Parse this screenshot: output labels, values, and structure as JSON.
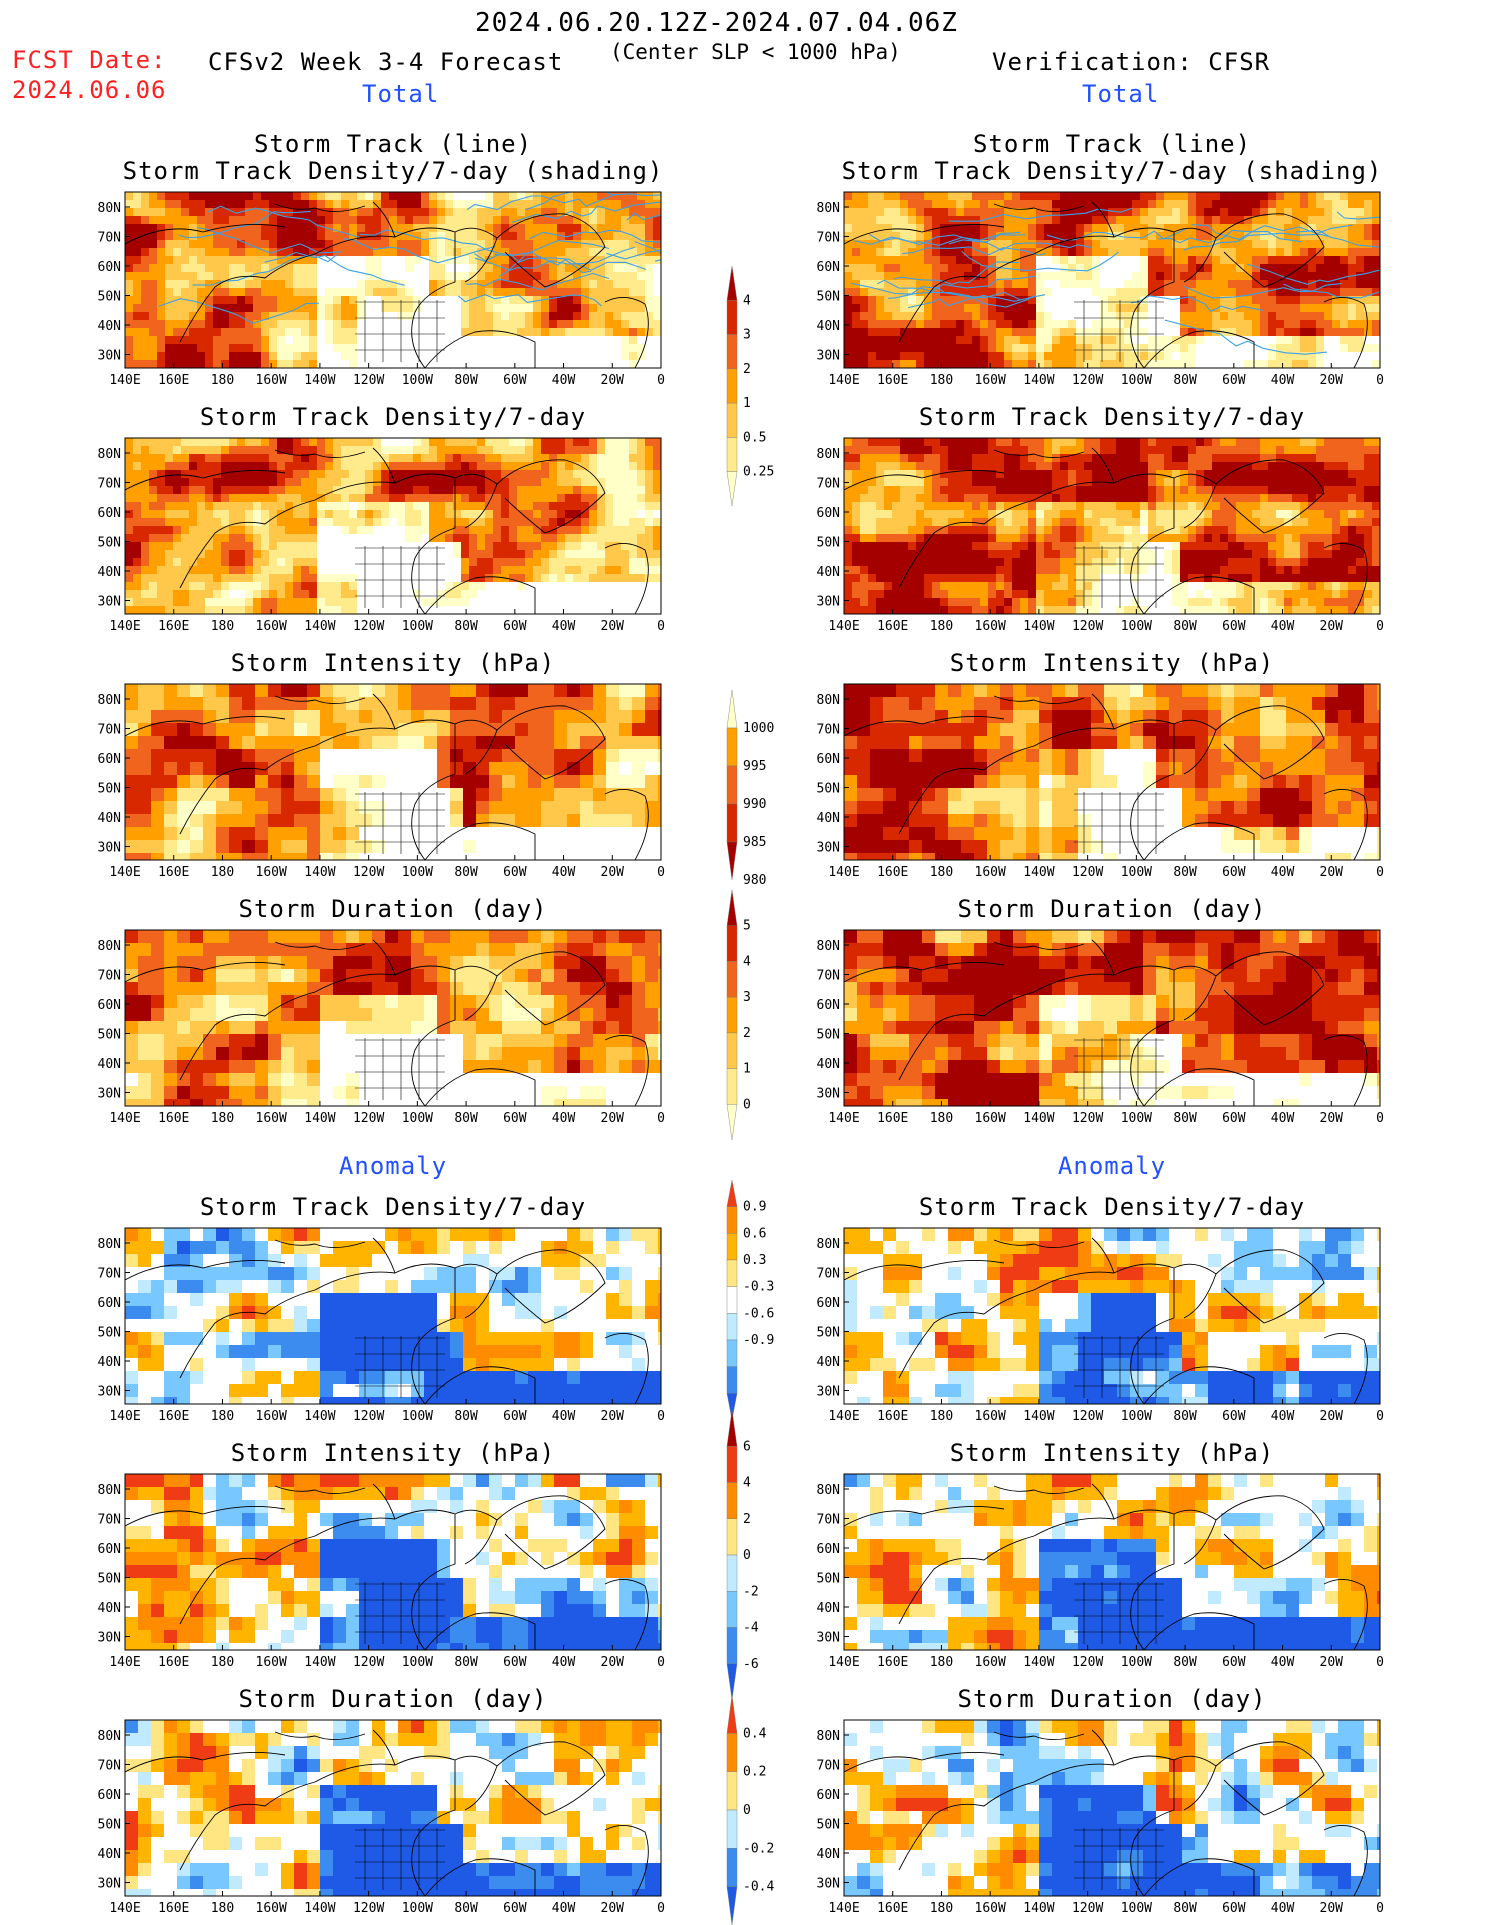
{
  "header": {
    "date_range": "2024.06.20.12Z-2024.07.04.06Z",
    "fcst_label": "FCST Date:",
    "fcst_date": "2024.06.06",
    "forecast_title": "CFSv2 Week 3-4 Forecast",
    "criterion": "(Center SLP < 1000 hPa)",
    "verification": "Verification: CFSR"
  },
  "sections": {
    "total": "Total",
    "anomaly": "Anomaly"
  },
  "panel_titles": {
    "track_line": "Storm Track (line)",
    "track_shading": "Storm Track Density/7-day (shading)",
    "density": "Storm Track Density/7-day",
    "intensity": "Storm Intensity (hPa)",
    "duration": "Storm Duration (day)"
  },
  "axes": {
    "lon_labels": [
      "140E",
      "160E",
      "180",
      "160W",
      "140W",
      "120W",
      "100W",
      "80W",
      "60W",
      "40W",
      "20W",
      "0"
    ],
    "lat_labels": [
      "80N",
      "70N",
      "60N",
      "50N",
      "40N",
      "30N"
    ]
  },
  "colorbars": [
    {
      "name": "density",
      "labels": [
        "4",
        "3",
        "2",
        "1",
        "0.5",
        "0.25"
      ],
      "colors": [
        "#a50000",
        "#d72800",
        "#f0641e",
        "#ffa000",
        "#ffc84b",
        "#ffeb8c",
        "#ffffc8"
      ]
    },
    {
      "name": "intensity",
      "labels": [
        "1000",
        "995",
        "990",
        "985",
        "980"
      ],
      "colors": [
        "#ffffc8",
        "#ffa000",
        "#f0641e",
        "#d72800",
        "#a50000"
      ]
    },
    {
      "name": "duration",
      "labels": [
        "5",
        "4",
        "3",
        "2",
        "1",
        "0"
      ],
      "colors": [
        "#a50000",
        "#d72800",
        "#f0641e",
        "#ffa000",
        "#ffc84b",
        "#ffeb8c",
        "#ffffc8"
      ]
    },
    {
      "name": "density-anomaly",
      "labels": [
        "0.9",
        "0.6",
        "0.3",
        "-0.3",
        "-0.6",
        "-0.9"
      ],
      "colors": [
        "#f03c14",
        "#ff8c00",
        "#ffb400",
        "#ffe682",
        "#ffffff",
        "#bfeaff",
        "#78c8ff",
        "#3c8cf0",
        "#1e5ae6"
      ]
    },
    {
      "name": "intensity-anomaly",
      "labels": [
        "6",
        "4",
        "2",
        "0",
        "-2",
        "-4",
        "-6"
      ],
      "colors": [
        "#a50000",
        "#f03c14",
        "#ff8c00",
        "#ffe682",
        "#bfeaff",
        "#78c8ff",
        "#3c8cf0",
        "#1e5ae6"
      ]
    },
    {
      "name": "duration-anomaly",
      "labels": [
        "0.4",
        "0.2",
        "0",
        "-0.2",
        "-0.4"
      ],
      "colors": [
        "#f03c14",
        "#ff8c00",
        "#ffe682",
        "#bfeaff",
        "#3c8cf0",
        "#1e5ae6"
      ]
    }
  ],
  "colors": {
    "map_outline": "#000000",
    "track_line": "#3ca0e6",
    "header_red": "#ff2020",
    "section_blue": "#2050ff"
  }
}
